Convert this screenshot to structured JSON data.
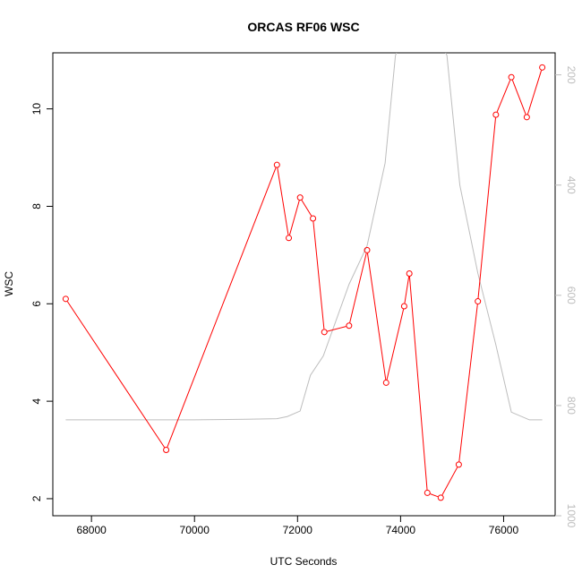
{
  "chart_data": {
    "type": "line",
    "title": "ORCAS RF06 WSC",
    "xlabel": "UTC Seconds",
    "ylabel": "WSC",
    "xlim": [
      67250,
      77000
    ],
    "ylim": [
      1.65,
      11.15
    ],
    "y2lim": [
      1000,
      160
    ],
    "y2_reversed": true,
    "x_ticks": [
      68000,
      70000,
      72000,
      74000,
      76000
    ],
    "y_ticks": [
      2,
      4,
      6,
      8,
      10
    ],
    "y2_ticks": [
      200,
      400,
      600,
      800,
      1000
    ],
    "grid": false,
    "series": [
      {
        "color": "#ff0000",
        "marker": "open-circle",
        "x": [
          67500,
          69450,
          71600,
          71830,
          72050,
          72300,
          72520,
          73000,
          73350,
          73720,
          74070,
          74170,
          74520,
          74780,
          75130,
          75500,
          75850,
          76150,
          76450,
          76750
        ],
        "y": [
          6.1,
          3.0,
          8.85,
          7.35,
          8.18,
          7.75,
          5.42,
          5.55,
          7.1,
          4.38,
          5.95,
          6.62,
          2.12,
          2.02,
          2.7,
          6.05,
          9.88,
          10.65,
          9.83,
          10.85
        ]
      },
      {
        "color": "#bdbdbd",
        "axis": "right",
        "x": [
          67500,
          68500,
          70000,
          71000,
          71600,
          71800,
          72050,
          72250,
          72500,
          73000,
          73350,
          73700,
          73900,
          74150,
          74600,
          74900,
          75150,
          75500,
          75850,
          76150,
          76500,
          76750
        ],
        "y": [
          826,
          826,
          826,
          825,
          824,
          820,
          810,
          745,
          710,
          580,
          510,
          360,
          165,
          100,
          100,
          165,
          400,
          560,
          690,
          812,
          826,
          826
        ]
      }
    ]
  }
}
